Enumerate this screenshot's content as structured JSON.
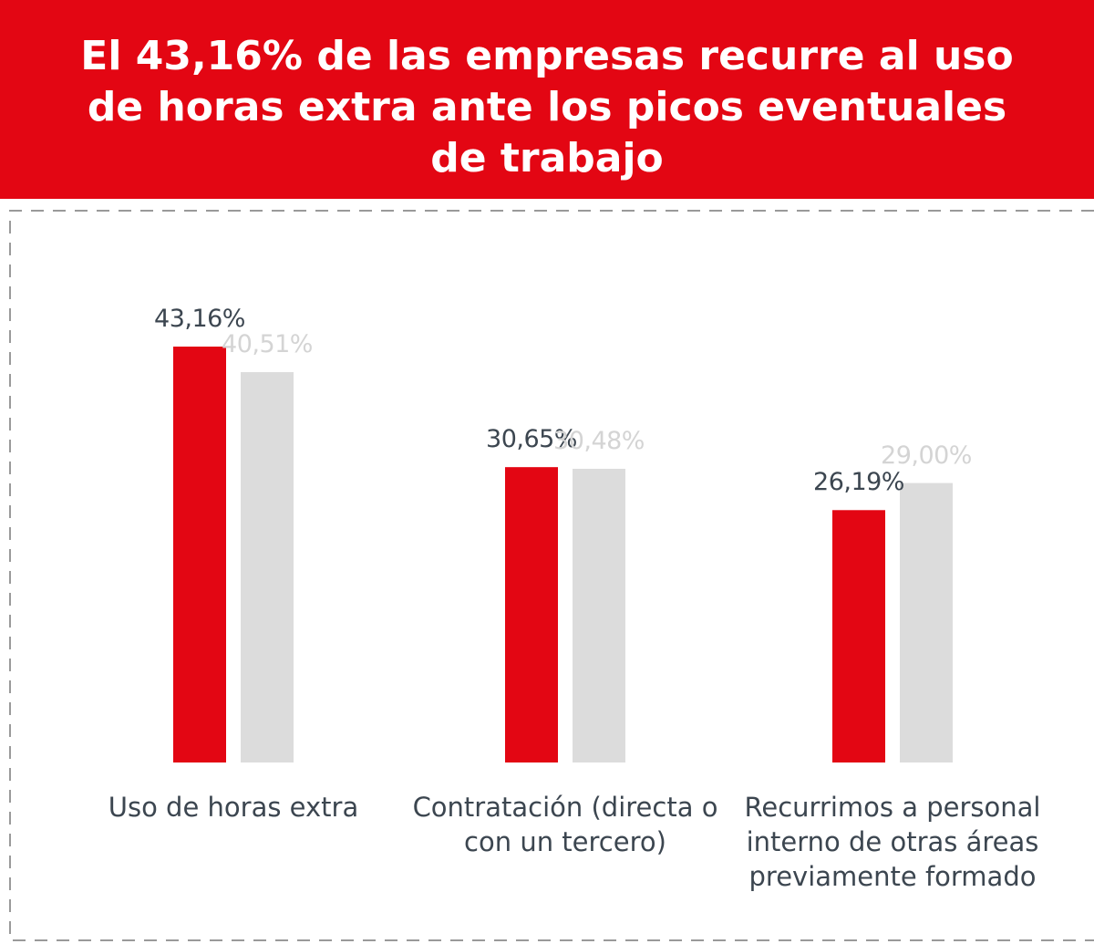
{
  "chart_data": {
    "type": "bar",
    "title": "El 43,16% de las empresas recurre al uso de horas extra ante los picos eventuales de trabajo",
    "categories": [
      "Uso de horas extra",
      "Contratación (directa o con un tercero)",
      "Recurrimos a personal interno de otras áreas previamente formado"
    ],
    "series": [
      {
        "color": "#e30613",
        "values": [
          43.16,
          30.65,
          26.19
        ],
        "value_labels": [
          "43,16%",
          "30,65%",
          "26,19%"
        ]
      },
      {
        "color": "#dcdcdc",
        "values": [
          40.51,
          30.48,
          29.0
        ],
        "value_labels": [
          "40,51%",
          "30,48%",
          "29,00%"
        ]
      }
    ]
  }
}
